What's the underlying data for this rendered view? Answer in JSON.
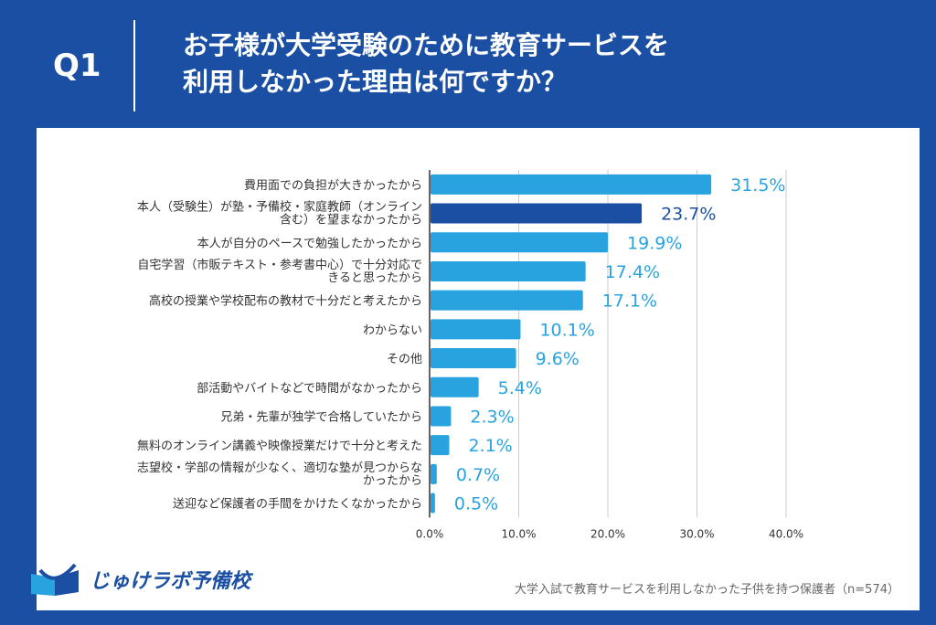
{
  "header": {
    "q_label": "Q1",
    "title_line1": "お子様が大学受験のために教育サービスを",
    "title_line2": "利用しなかった理由は何ですか？"
  },
  "chart_data": {
    "type": "bar",
    "orientation": "horizontal",
    "categories": [
      [
        "費用面での負担が大きかったから"
      ],
      [
        "本人（受験生）が塾・予備校・家庭教師（オンライン",
        "含む）を望まなかったから"
      ],
      [
        "本人が自分のペースで勉強したかったから"
      ],
      [
        "自宅学習（市販テキスト・参考書中心）で十分対応で",
        "きると思ったから"
      ],
      [
        "高校の授業や学校配布の教材で十分だと考えたから"
      ],
      [
        "わからない"
      ],
      [
        "その他"
      ],
      [
        "部活動やバイトなどで時間がなかったから"
      ],
      [
        "兄弟・先輩が独学で合格していたから"
      ],
      [
        "無料のオンライン講義や映像授業だけで十分と考えた"
      ],
      [
        "志望校・学部の情報が少なく、適切な塾が見つからな",
        "かったから"
      ],
      [
        "送迎など保護者の手間をかけたくなかったから"
      ]
    ],
    "values": [
      31.5,
      23.7,
      19.9,
      17.4,
      17.1,
      10.1,
      9.6,
      5.4,
      2.3,
      2.1,
      0.7,
      0.5
    ],
    "value_labels": [
      "31.5%",
      "23.7%",
      "19.9%",
      "17.4%",
      "17.1%",
      "10.1%",
      "9.6%",
      "5.4%",
      "2.3%",
      "2.1%",
      "0.7%",
      "0.5%"
    ],
    "highlight_index": 1,
    "xlim": [
      0,
      40
    ],
    "x_ticks": [
      "0.0%",
      "10.0%",
      "20.0%",
      "30.0%",
      "40.0%"
    ],
    "grid": true,
    "colors": {
      "bar": "#29a3e0",
      "highlight": "#1a4fa3"
    }
  },
  "footer": {
    "logo_text": "じゅけラボ予備校",
    "source": "大学入試で教育サービスを利用しなかった子供を持つ保護者（n=574）"
  }
}
